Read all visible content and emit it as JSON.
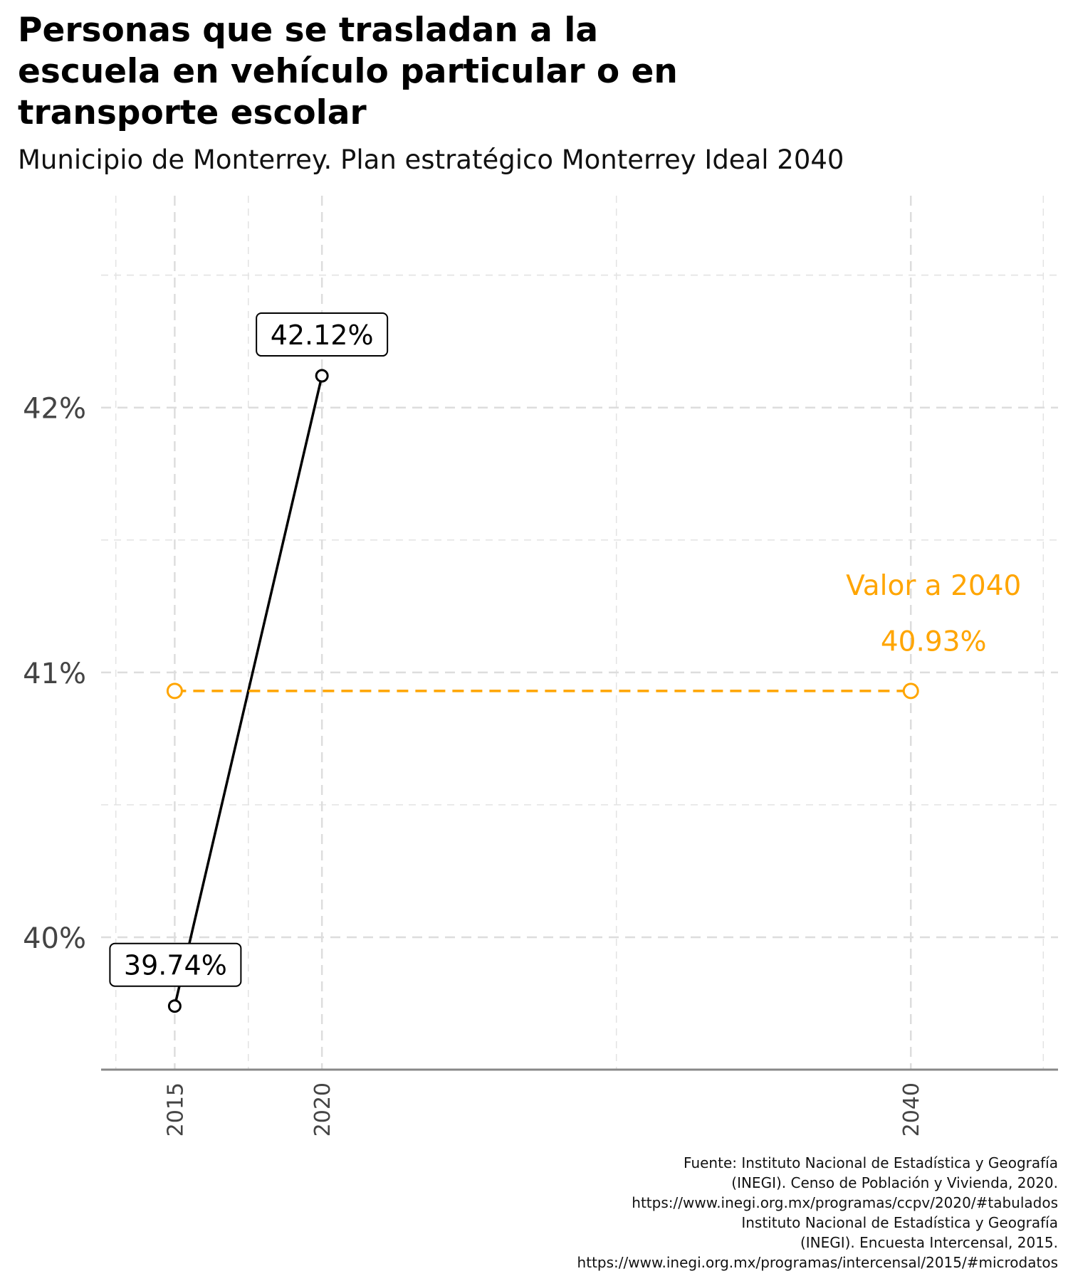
{
  "chart_data": {
    "type": "line",
    "title_lines": [
      "Personas que se trasladan a la",
      "escuela en vehículo particular o en",
      "transporte escolar"
    ],
    "subtitle": "Municipio de Monterrey. Plan estratégico Monterrey Ideal 2040",
    "xlabel": "",
    "ylabel": "",
    "x_ticks": [
      "2015",
      "2020",
      "2040"
    ],
    "y_ticks": [
      "40%",
      "41%",
      "42%"
    ],
    "ylim": [
      39.5,
      42.8
    ],
    "xlim": [
      2012.5,
      2045
    ],
    "grid": true,
    "series": [
      {
        "x": [
          2015,
          2020
        ],
        "values": [
          39.74,
          42.12
        ],
        "labels": [
          "39.74%",
          "42.12%"
        ],
        "color": "#000000",
        "style": "solid"
      },
      {
        "x": [
          2015,
          2040
        ],
        "values": [
          40.93,
          40.93
        ],
        "color": "#FFA500",
        "style": "dashed"
      }
    ],
    "annotation": {
      "lines": [
        "Valor a 2040",
        "40.93%"
      ],
      "color": "#FFA500"
    }
  },
  "caption_lines": [
    "Fuente: Instituto Nacional de Estadística y Geografía",
    "(INEGI). Censo de Población y Vivienda, 2020.",
    "https://www.inegi.org.mx/programas/ccpv/2020/#tabulados",
    "Instituto Nacional de Estadística y Geografía",
    "(INEGI). Encuesta Intercensal, 2015.",
    "https://www.inegi.org.mx/programas/intercensal/2015/#microdatos"
  ]
}
